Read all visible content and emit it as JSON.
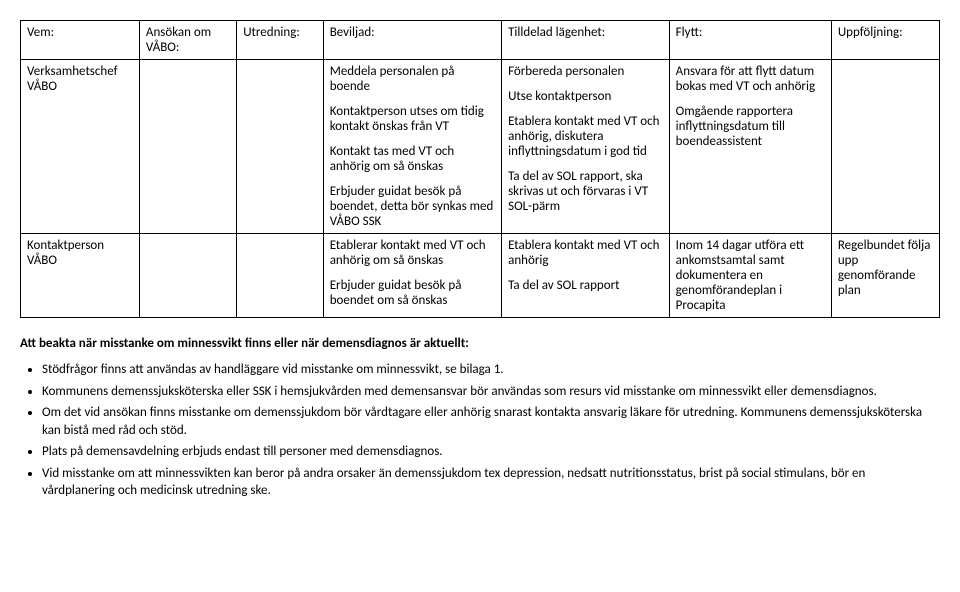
{
  "table": {
    "headers": [
      "Vem:",
      "Ansökan om VÅBO:",
      "Utredning:",
      "Beviljad:",
      "Tilldelad lägenhet:",
      "Flytt:",
      "Uppföljning:"
    ],
    "rows": [
      {
        "vem": "Verksamhetschef VÅBO",
        "ansokan": "",
        "utredning": "",
        "beviljad": [
          "Meddela personalen på boende",
          "Kontaktperson utses om tidig kontakt önskas från VT",
          "Kontakt tas med VT och anhörig om så önskas",
          "Erbjuder guidat besök på boendet, detta bör synkas med VÅBO SSK"
        ],
        "tilldelad": [
          "Förbereda personalen",
          "Utse kontaktperson",
          "Etablera kontakt med VT och anhörig, diskutera inflyttningsdatum i god tid",
          "Ta del av SOL rapport, ska skrivas ut och förvaras i VT SOL-pärm"
        ],
        "flytt": [
          "Ansvara för att flytt datum bokas med VT och anhörig",
          "Omgående rapportera inflyttningsdatum till boendeassistent"
        ],
        "uppfoljning": ""
      },
      {
        "vem": "Kontaktperson VÅBO",
        "ansokan": "",
        "utredning": "",
        "beviljad": [
          "Etablerar kontakt med VT och anhörig om så önskas",
          "Erbjuder guidat besök på boendet om så önskas"
        ],
        "tilldelad": [
          "Etablera kontakt med VT och anhörig",
          "Ta del av SOL rapport"
        ],
        "flytt": [
          "Inom 14 dagar utföra ett ankomstsamtal samt dokumentera en genomförandeplan i Procapita"
        ],
        "uppfoljning": "Regelbundet följa upp genomförande plan"
      }
    ]
  },
  "section_heading": "Att beakta när misstanke om minnessvikt finns eller när demensdiagnos är aktuellt:",
  "bullets": [
    "Stödfrågor finns att användas av handläggare vid misstanke om minnessvikt, se bilaga 1.",
    "Kommunens demenssjuksköterska eller SSK i hemsjukvården med demensansvar bör användas som resurs vid misstanke om minnessvikt eller demensdiagnos.",
    "Om det vid ansökan finns misstanke om demenssjukdom bör vårdtagare eller anhörig snarast kontakta ansvarig läkare för utredning. Kommunens demenssjuksköterska kan bistå med råd och stöd.",
    "Plats på demensavdelning erbjuds endast till personer med demensdiagnos.",
    "Vid misstanke om att minnessvikten kan beror på andra orsaker än demenssjukdom tex depression, nedsatt nutritionsstatus, brist på social stimulans, bör en vårdplanering och medicinsk utredning ske."
  ],
  "style": {
    "font_family": "Calibri, Arial, sans-serif",
    "font_size_pt": 13,
    "text_color": "#000000",
    "background_color": "#ffffff",
    "border_color": "#000000",
    "heading_weight": "bold"
  }
}
